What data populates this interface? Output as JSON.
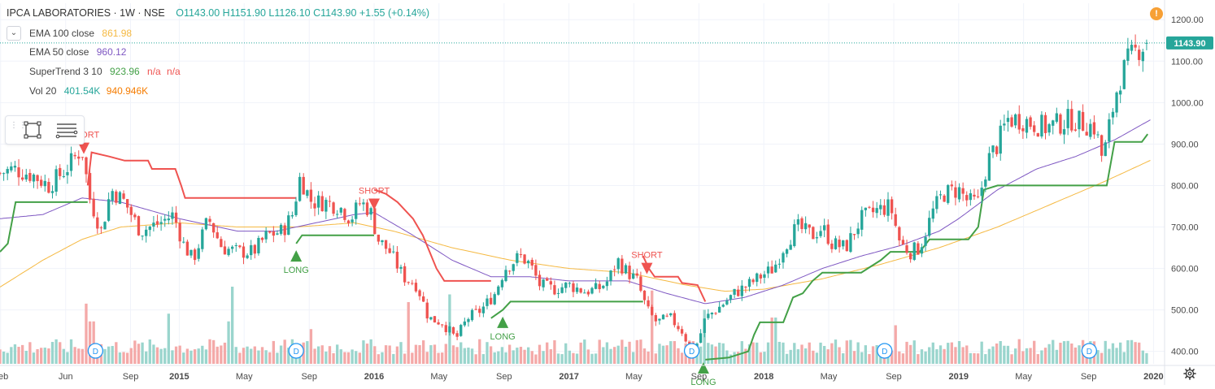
{
  "header": {
    "symbol": "IPCA LABORATORIES · 1W · NSE",
    "ohlc": "O1143.00  H1151.90  L1126.10  C1143.90  +1.55 (+0.14%)"
  },
  "indicators": [
    {
      "name": "EMA 100 close",
      "value": "861.98",
      "color": "#f5b942"
    },
    {
      "name": "EMA 50 close",
      "value": "960.12",
      "color": "#7e57c2"
    },
    {
      "name": "SuperTrend 3 10",
      "value": "923.96",
      "extra": "n/a",
      "extra2": "n/a",
      "color": "#43a047",
      "extra_color": "#ef5350"
    },
    {
      "name": "Vol 20",
      "value": "401.54K",
      "extra": "940.946K",
      "color": "#26a69a",
      "extra_color": "#f57c00"
    }
  ],
  "price_label": {
    "value": "1143.90",
    "color": "#26a69a"
  },
  "info_badge": "!",
  "icons": {
    "collapse": "chevron-down-icon",
    "rectangle_tool": "rectangle-tool-icon",
    "lines_tool": "horizontal-lines-icon",
    "grip": "drag-grip-icon",
    "settings": "gear-icon",
    "dividend": "dividend-marker-icon"
  },
  "colors": {
    "up": "#26a69a",
    "down": "#ef5350",
    "vol_up": "#9ad5cd",
    "vol_down": "#f4a9a8",
    "ema100": "#f5b942",
    "ema50": "#7e57c2",
    "st_up": "#43a047",
    "st_down": "#ef5350",
    "grid": "#f0f3fa",
    "axis_text": "#4a4a4a"
  },
  "chart_data": {
    "type": "candlestick",
    "title": "IPCA LABORATORIES · 1W · NSE",
    "y_axis": {
      "ticks": [
        400,
        500,
        600,
        700,
        800,
        900,
        1000,
        1100,
        1200
      ],
      "tick_labels": [
        "400.00",
        "500.00",
        "600.00",
        "700.00",
        "800.00",
        "900.00",
        "1000.00",
        "1100.00",
        "1200.00"
      ],
      "range": [
        370,
        1220
      ],
      "position": "right"
    },
    "x_axis": {
      "range": [
        2014.08,
        2019.99
      ],
      "ticks": [
        {
          "t": 2014.083,
          "label": "Feb"
        },
        {
          "t": 2014.417,
          "label": "Jun"
        },
        {
          "t": 2014.75,
          "label": "Sep"
        },
        {
          "t": 2015.0,
          "label": "2015"
        },
        {
          "t": 2015.333,
          "label": "May"
        },
        {
          "t": 2015.667,
          "label": "Sep"
        },
        {
          "t": 2016.0,
          "label": "2016"
        },
        {
          "t": 2016.333,
          "label": "May"
        },
        {
          "t": 2016.667,
          "label": "Sep"
        },
        {
          "t": 2017.0,
          "label": "2017"
        },
        {
          "t": 2017.333,
          "label": "May"
        },
        {
          "t": 2017.667,
          "label": "Sep"
        },
        {
          "t": 2018.0,
          "label": "2018"
        },
        {
          "t": 2018.333,
          "label": "May"
        },
        {
          "t": 2018.667,
          "label": "Sep"
        },
        {
          "t": 2019.0,
          "label": "2019"
        },
        {
          "t": 2019.333,
          "label": "May"
        },
        {
          "t": 2019.667,
          "label": "Sep"
        },
        {
          "t": 2020.0,
          "label": "2020"
        }
      ]
    },
    "close_anchors": [
      [
        2014.08,
        830
      ],
      [
        2014.15,
        840
      ],
      [
        2014.25,
        825
      ],
      [
        2014.33,
        800
      ],
      [
        2014.42,
        840
      ],
      [
        2014.5,
        890
      ],
      [
        2014.54,
        770
      ],
      [
        2014.6,
        690
      ],
      [
        2014.65,
        790
      ],
      [
        2014.72,
        760
      ],
      [
        2014.8,
        690
      ],
      [
        2014.9,
        710
      ],
      [
        2014.97,
        730
      ],
      [
        2015.02,
        660
      ],
      [
        2015.07,
        620
      ],
      [
        2015.15,
        720
      ],
      [
        2015.22,
        650
      ],
      [
        2015.3,
        640
      ],
      [
        2015.38,
        640
      ],
      [
        2015.45,
        680
      ],
      [
        2015.53,
        690
      ],
      [
        2015.58,
        730
      ],
      [
        2015.62,
        820
      ],
      [
        2015.68,
        760
      ],
      [
        2015.75,
        760
      ],
      [
        2015.82,
        750
      ],
      [
        2015.88,
        720
      ],
      [
        2015.93,
        760
      ],
      [
        2015.98,
        740
      ],
      [
        2016.02,
        670
      ],
      [
        2016.08,
        640
      ],
      [
        2016.15,
        580
      ],
      [
        2016.22,
        560
      ],
      [
        2016.28,
        480
      ],
      [
        2016.35,
        470
      ],
      [
        2016.42,
        430
      ],
      [
        2016.48,
        480
      ],
      [
        2016.55,
        500
      ],
      [
        2016.62,
        540
      ],
      [
        2016.67,
        600
      ],
      [
        2016.75,
        630
      ],
      [
        2016.8,
        610
      ],
      [
        2016.85,
        560
      ],
      [
        2016.92,
        550
      ],
      [
        2017.0,
        560
      ],
      [
        2017.08,
        545
      ],
      [
        2017.15,
        550
      ],
      [
        2017.2,
        570
      ],
      [
        2017.25,
        620
      ],
      [
        2017.28,
        600
      ],
      [
        2017.35,
        570
      ],
      [
        2017.4,
        500
      ],
      [
        2017.45,
        470
      ],
      [
        2017.52,
        480
      ],
      [
        2017.58,
        450
      ],
      [
        2017.62,
        410
      ],
      [
        2017.66,
        420
      ],
      [
        2017.7,
        480
      ],
      [
        2017.78,
        510
      ],
      [
        2017.85,
        540
      ],
      [
        2017.92,
        560
      ],
      [
        2017.98,
        580
      ],
      [
        2018.05,
        600
      ],
      [
        2018.1,
        650
      ],
      [
        2018.17,
        700
      ],
      [
        2018.25,
        680
      ],
      [
        2018.3,
        700
      ],
      [
        2018.35,
        660
      ],
      [
        2018.42,
        650
      ],
      [
        2018.5,
        720
      ],
      [
        2018.58,
        740
      ],
      [
        2018.65,
        750
      ],
      [
        2018.7,
        660
      ],
      [
        2018.75,
        640
      ],
      [
        2018.8,
        650
      ],
      [
        2018.87,
        740
      ],
      [
        2018.92,
        780
      ],
      [
        2019.0,
        790
      ],
      [
        2019.05,
        760
      ],
      [
        2019.1,
        760
      ],
      [
        2019.15,
        860
      ],
      [
        2019.2,
        900
      ],
      [
        2019.25,
        960
      ],
      [
        2019.32,
        960
      ],
      [
        2019.38,
        950
      ],
      [
        2019.45,
        940
      ],
      [
        2019.52,
        950
      ],
      [
        2019.58,
        960
      ],
      [
        2019.64,
        950
      ],
      [
        2019.7,
        940
      ],
      [
        2019.74,
        860
      ],
      [
        2019.78,
        960
      ],
      [
        2019.82,
        1050
      ],
      [
        2019.87,
        1100
      ],
      [
        2019.92,
        1130
      ],
      [
        2019.96,
        1143.9
      ]
    ],
    "ema50_anchors": [
      [
        2014.08,
        720
      ],
      [
        2014.3,
        730
      ],
      [
        2014.5,
        770
      ],
      [
        2014.7,
        760
      ],
      [
        2015.0,
        720
      ],
      [
        2015.3,
        690
      ],
      [
        2015.5,
        690
      ],
      [
        2015.7,
        710
      ],
      [
        2015.9,
        730
      ],
      [
        2016.0,
        735
      ],
      [
        2016.2,
        680
      ],
      [
        2016.4,
        620
      ],
      [
        2016.6,
        580
      ],
      [
        2016.8,
        580
      ],
      [
        2017.0,
        570
      ],
      [
        2017.3,
        570
      ],
      [
        2017.5,
        540
      ],
      [
        2017.7,
        515
      ],
      [
        2017.9,
        530
      ],
      [
        2018.1,
        560
      ],
      [
        2018.3,
        600
      ],
      [
        2018.5,
        630
      ],
      [
        2018.7,
        655
      ],
      [
        2018.9,
        690
      ],
      [
        2019.0,
        720
      ],
      [
        2019.2,
        790
      ],
      [
        2019.4,
        840
      ],
      [
        2019.6,
        870
      ],
      [
        2019.8,
        910
      ],
      [
        2019.99,
        960
      ]
    ],
    "ema100_anchors": [
      [
        2014.08,
        555
      ],
      [
        2014.3,
        620
      ],
      [
        2014.5,
        670
      ],
      [
        2014.7,
        700
      ],
      [
        2015.0,
        710
      ],
      [
        2015.3,
        700
      ],
      [
        2015.6,
        700
      ],
      [
        2015.9,
        710
      ],
      [
        2016.1,
        690
      ],
      [
        2016.4,
        650
      ],
      [
        2016.7,
        620
      ],
      [
        2017.0,
        600
      ],
      [
        2017.3,
        590
      ],
      [
        2017.6,
        560
      ],
      [
        2017.8,
        545
      ],
      [
        2018.0,
        550
      ],
      [
        2018.3,
        575
      ],
      [
        2018.6,
        610
      ],
      [
        2018.9,
        650
      ],
      [
        2019.2,
        700
      ],
      [
        2019.5,
        760
      ],
      [
        2019.75,
        810
      ],
      [
        2019.99,
        862
      ]
    ],
    "supertrend": [
      {
        "trend": "up",
        "points": [
          [
            2014.08,
            640
          ],
          [
            2014.12,
            660
          ],
          [
            2014.16,
            760
          ],
          [
            2014.53,
            760
          ]
        ]
      },
      {
        "trend": "down",
        "points": [
          [
            2014.53,
            800
          ],
          [
            2014.55,
            880
          ],
          [
            2014.64,
            870
          ],
          [
            2014.72,
            860
          ],
          [
            2014.84,
            860
          ],
          [
            2014.86,
            840
          ],
          [
            2014.98,
            840
          ],
          [
            2015.01,
            800
          ],
          [
            2015.03,
            770
          ],
          [
            2015.6,
            770
          ]
        ]
      },
      {
        "trend": "up",
        "points": [
          [
            2015.6,
            660
          ],
          [
            2015.63,
            680
          ],
          [
            2016.0,
            680
          ]
        ]
      },
      {
        "trend": "down",
        "points": [
          [
            2016.0,
            790
          ],
          [
            2016.06,
            780
          ],
          [
            2016.12,
            760
          ],
          [
            2016.2,
            720
          ],
          [
            2016.25,
            680
          ],
          [
            2016.32,
            600
          ],
          [
            2016.36,
            570
          ],
          [
            2016.6,
            570
          ]
        ]
      },
      {
        "trend": "up",
        "points": [
          [
            2016.6,
            480
          ],
          [
            2016.66,
            500
          ],
          [
            2016.7,
            520
          ],
          [
            2017.38,
            520
          ]
        ]
      },
      {
        "trend": "down",
        "points": [
          [
            2017.38,
            630
          ],
          [
            2017.41,
            600
          ],
          [
            2017.44,
            580
          ],
          [
            2017.56,
            580
          ],
          [
            2017.58,
            565
          ],
          [
            2017.66,
            560
          ],
          [
            2017.7,
            520
          ]
        ]
      },
      {
        "trend": "up",
        "points": [
          [
            2017.7,
            380
          ],
          [
            2017.82,
            385
          ],
          [
            2017.92,
            400
          ],
          [
            2017.95,
            440
          ],
          [
            2017.98,
            470
          ],
          [
            2018.1,
            470
          ],
          [
            2018.15,
            530
          ],
          [
            2018.2,
            540
          ],
          [
            2018.25,
            570
          ],
          [
            2018.3,
            590
          ],
          [
            2018.5,
            590
          ],
          [
            2018.55,
            605
          ],
          [
            2018.6,
            620
          ],
          [
            2018.65,
            640
          ],
          [
            2018.8,
            640
          ],
          [
            2018.85,
            670
          ],
          [
            2019.05,
            670
          ],
          [
            2019.1,
            700
          ],
          [
            2019.13,
            790
          ],
          [
            2019.2,
            800
          ],
          [
            2019.76,
            800
          ],
          [
            2019.8,
            905
          ],
          [
            2019.94,
            905
          ],
          [
            2019.97,
            924
          ]
        ]
      }
    ],
    "signals": [
      {
        "type": "SHORT",
        "t": 2014.51,
        "price": 880
      },
      {
        "type": "LONG",
        "t": 2015.6,
        "price": 640
      },
      {
        "type": "SHORT",
        "t": 2016.0,
        "price": 745
      },
      {
        "type": "LONG",
        "t": 2016.66,
        "price": 480
      },
      {
        "type": "SHORT",
        "t": 2017.4,
        "price": 590
      },
      {
        "type": "LONG",
        "t": 2017.69,
        "price": 370
      }
    ],
    "dividends": [
      2014.57,
      2015.6,
      2017.63,
      2018.62,
      2019.67
    ],
    "volume_spikes": [
      {
        "t": 2014.53,
        "v": 0.78
      },
      {
        "t": 2014.55,
        "v": 0.55
      },
      {
        "t": 2014.95,
        "v": 0.65
      },
      {
        "t": 2015.27,
        "v": 1.0
      },
      {
        "t": 2015.25,
        "v": 0.55
      },
      {
        "t": 2015.68,
        "v": 0.45
      },
      {
        "t": 2016.17,
        "v": 0.8
      },
      {
        "t": 2016.38,
        "v": 0.9
      },
      {
        "t": 2017.42,
        "v": 0.95
      },
      {
        "t": 2017.69,
        "v": 0.7
      },
      {
        "t": 2018.05,
        "v": 0.6
      },
      {
        "t": 2018.67,
        "v": 0.5
      }
    ]
  }
}
